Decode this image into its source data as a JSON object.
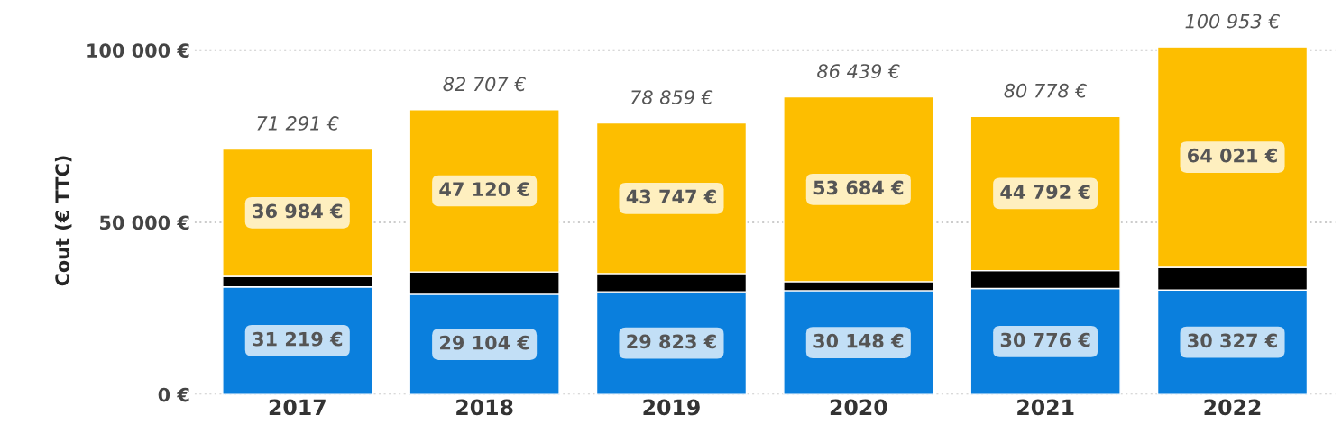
{
  "chart_data": {
    "type": "bar",
    "stacked": true,
    "ylabel": "Cout (€ TTC)",
    "categories": [
      "2017",
      "2018",
      "2019",
      "2020",
      "2021",
      "2022"
    ],
    "series": [
      {
        "color": "#0a7fdd",
        "values": [
          31219,
          29104,
          29823,
          30148,
          30776,
          30327
        ],
        "value_labels": [
          "31 219 €",
          "29 104 €",
          "29 823 €",
          "30 148 €",
          "30 776 €",
          "30 327 €"
        ]
      },
      {
        "color": "#000000",
        "values": [
          3088,
          6483,
          5289,
          2607,
          5210,
          6605
        ]
      },
      {
        "color": "#fdbe00",
        "values": [
          36984,
          47120,
          43747,
          53684,
          44792,
          64021
        ],
        "value_labels": [
          "36 984 €",
          "47 120 €",
          "43 747 €",
          "53 684 €",
          "44 792 €",
          "64 021 €"
        ]
      }
    ],
    "totals": [
      "71 291 €",
      "82 707 €",
      "78 859 €",
      "86 439 €",
      "80 778 €",
      "100 953 €"
    ],
    "ylim": [
      0,
      101000
    ],
    "yticks": [
      {
        "value": 0,
        "label": "0 €"
      },
      {
        "value": 50000,
        "label": "50 000 €"
      },
      {
        "value": 100000,
        "label": "100 000 €"
      }
    ],
    "grid": "y"
  }
}
